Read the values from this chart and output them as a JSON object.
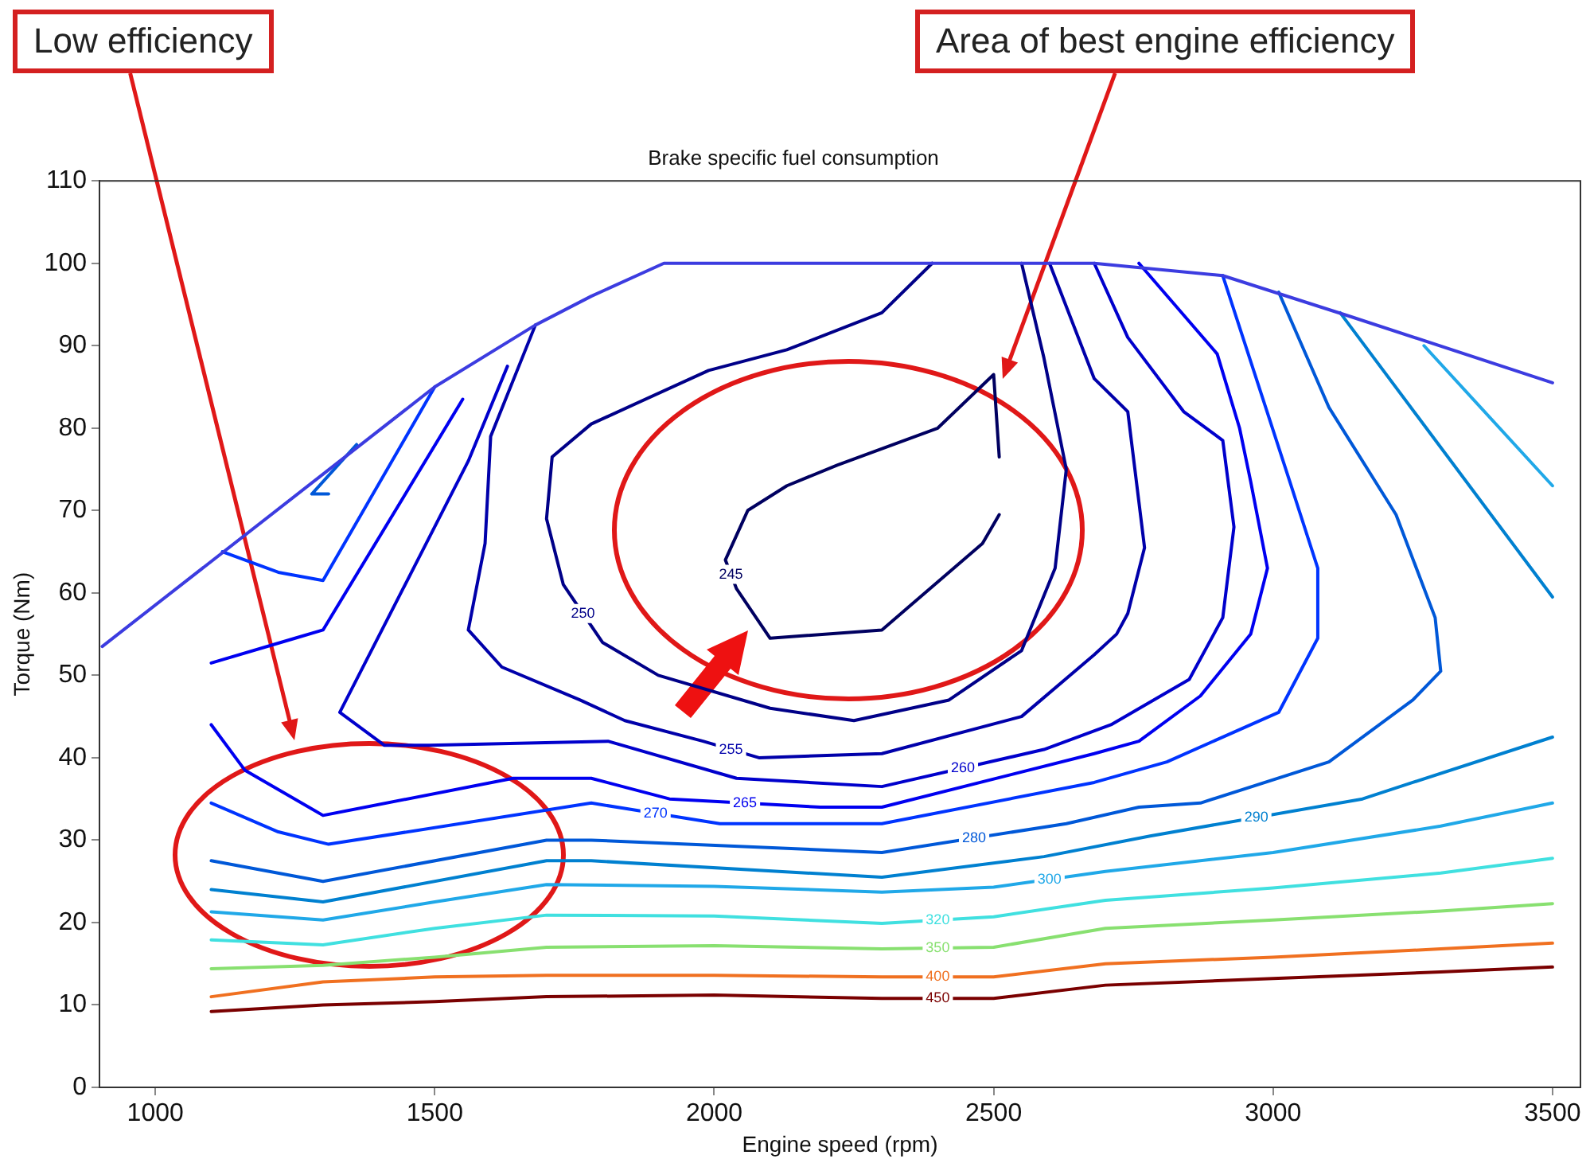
{
  "chart_data": {
    "type": "line",
    "title": "Brake specific fuel consumption",
    "xlabel": "Engine speed (rpm)",
    "ylabel": "Torque (Nm)",
    "xlim": [
      900,
      3550
    ],
    "xticks": [
      1000,
      1500,
      2000,
      2500,
      3000,
      3500
    ],
    "ylim": [
      0,
      110
    ],
    "yticks": [
      0,
      10,
      20,
      30,
      40,
      50,
      60,
      70,
      80,
      90,
      100,
      110
    ],
    "marker": "none",
    "annotations": [
      "Low efficiency",
      "Area of best engine efficiency"
    ],
    "series": [
      {
        "color": "#3c3ce0",
        "x": [
          905,
          1500,
          1680,
          1780,
          1910,
          2680,
          2910,
          3140,
          3500
        ],
        "values": [
          53.5,
          85,
          92.5,
          96,
          100,
          100,
          98.5,
          93.5,
          85.5
        ]
      },
      {
        "name": "245",
        "color": "#000060",
        "x": [
          2510,
          2500,
          2400,
          2220,
          2130,
          2060,
          2020,
          2040,
          2100,
          2300,
          2480,
          2510
        ],
        "values": [
          76.5,
          86.5,
          80,
          75.5,
          73,
          70,
          64,
          60.5,
          54.5,
          55.5,
          66,
          69.5
        ]
      },
      {
        "name": "250",
        "color": "#000088",
        "x": [
          2550,
          2590,
          2630,
          2610,
          2550,
          2420,
          2250,
          2100,
          1900,
          1800,
          1730,
          1700,
          1710,
          1780,
          1990,
          2130,
          2300,
          2390
        ],
        "values": [
          100,
          88.5,
          75,
          63,
          53,
          47,
          44.5,
          46,
          50,
          54,
          61,
          69,
          76.5,
          80.5,
          87,
          89.5,
          94,
          100
        ]
      },
      {
        "name": "255",
        "color": "#0000aa",
        "x": [
          2600,
          2680,
          2740,
          2770,
          2740,
          2720,
          2680,
          2550,
          2300,
          2080,
          1980,
          1840,
          1760,
          1620,
          1560,
          1590,
          1600,
          1680
        ],
        "values": [
          100,
          86,
          82,
          65.5,
          57.5,
          55,
          52.5,
          45,
          40.5,
          40,
          42,
          44.5,
          47,
          51,
          55.5,
          66,
          79,
          92.5
        ]
      },
      {
        "name": "260",
        "color": "#0000cc",
        "x": [
          2680,
          2740,
          2840,
          2910,
          2930,
          2910,
          2850,
          2710,
          2590,
          2300,
          2040,
          1810,
          1490,
          1410,
          1330,
          1560,
          1630
        ],
        "values": [
          100,
          91,
          82,
          78.5,
          68,
          57,
          49.5,
          44,
          41,
          36.5,
          37.5,
          42,
          41.5,
          41.5,
          45.5,
          76,
          87.5
        ]
      },
      {
        "name": "265",
        "color": "#0000f0",
        "x": [
          2760,
          2900,
          2940,
          2960,
          2990,
          2960,
          2870,
          2760,
          2680,
          2300,
          2190,
          1920,
          1780,
          1640,
          1300,
          1160,
          1100,
          null,
          1550,
          1300,
          1250,
          1100
        ],
        "values": [
          100,
          89,
          80,
          73.5,
          63,
          55,
          47.5,
          42,
          40.5,
          34,
          34,
          35,
          37.5,
          37.5,
          33,
          38.5,
          44,
          null,
          83.5,
          55.5,
          54.5,
          51.5
        ]
      },
      {
        "name": "270",
        "color": "#0034ff",
        "x": [
          2910,
          3030,
          3080,
          3080,
          3010,
          2810,
          2680,
          2300,
          2010,
          1780,
          1310,
          1220,
          1100,
          null,
          1500,
          1300,
          1220,
          1120
        ],
        "values": [
          98.5,
          73.5,
          63,
          54.5,
          45.5,
          39.5,
          37,
          32,
          32,
          34.5,
          29.5,
          31,
          34.5,
          null,
          85,
          61.5,
          62.5,
          65
        ]
      },
      {
        "name": "280",
        "color": "#0058d8",
        "x": [
          3010,
          3100,
          3220,
          3290,
          3300,
          3250,
          3100,
          2870,
          2760,
          2630,
          2300,
          1780,
          1700,
          1300,
          1100,
          null,
          1360,
          1280,
          1310
        ],
        "values": [
          96.5,
          82.5,
          69.5,
          57,
          50.5,
          47,
          39.5,
          34.5,
          34,
          32,
          28.5,
          30,
          30,
          25,
          27.5,
          null,
          78,
          72,
          72
        ]
      },
      {
        "name": "290",
        "color": "#0080d0",
        "x": [
          1100,
          1300,
          1700,
          1780,
          2300,
          2590,
          2780,
          3160,
          3250,
          3500,
          null,
          3120,
          3500
        ],
        "values": [
          24,
          22.5,
          27.5,
          27.5,
          25.5,
          28,
          30.5,
          35,
          37,
          42.5,
          null,
          94,
          59.5
        ]
      },
      {
        "name": "300",
        "color": "#20a8e8",
        "x": [
          1100,
          1300,
          1500,
          1700,
          2000,
          2300,
          2500,
          2700,
          3000,
          3300,
          3500,
          null,
          3270,
          3500
        ],
        "values": [
          21.3,
          20.3,
          22.5,
          24.6,
          24.4,
          23.7,
          24.3,
          26.2,
          28.5,
          31.7,
          34.5,
          null,
          90,
          73
        ]
      },
      {
        "name": "320",
        "color": "#40e0e0",
        "x": [
          1100,
          1300,
          1500,
          1700,
          2000,
          2300,
          2500,
          2700,
          3000,
          3300,
          3500
        ],
        "values": [
          17.9,
          17.3,
          19.3,
          20.9,
          20.8,
          19.9,
          20.7,
          22.7,
          24.2,
          26,
          27.8
        ]
      },
      {
        "name": "350",
        "color": "#88e070",
        "x": [
          1100,
          1300,
          1500,
          1700,
          2000,
          2300,
          2500,
          2700,
          3000,
          3300,
          3500
        ],
        "values": [
          14.4,
          14.8,
          15.8,
          17,
          17.2,
          16.8,
          17,
          19.3,
          20.3,
          21.4,
          22.3
        ]
      },
      {
        "name": "400",
        "color": "#f07020",
        "x": [
          1100,
          1300,
          1500,
          1700,
          2000,
          2300,
          2500,
          2700,
          3000,
          3300,
          3500
        ],
        "values": [
          11,
          12.8,
          13.4,
          13.6,
          13.6,
          13.4,
          13.4,
          15,
          15.8,
          16.8,
          17.5
        ]
      },
      {
        "name": "450",
        "color": "#7a0000",
        "x": [
          1100,
          1300,
          1500,
          1700,
          2000,
          2300,
          2500,
          2700,
          3000,
          3300,
          3500
        ],
        "values": [
          9.2,
          10,
          10.4,
          11,
          11.2,
          10.8,
          10.8,
          12.4,
          13.2,
          14,
          14.6
        ]
      }
    ]
  }
}
